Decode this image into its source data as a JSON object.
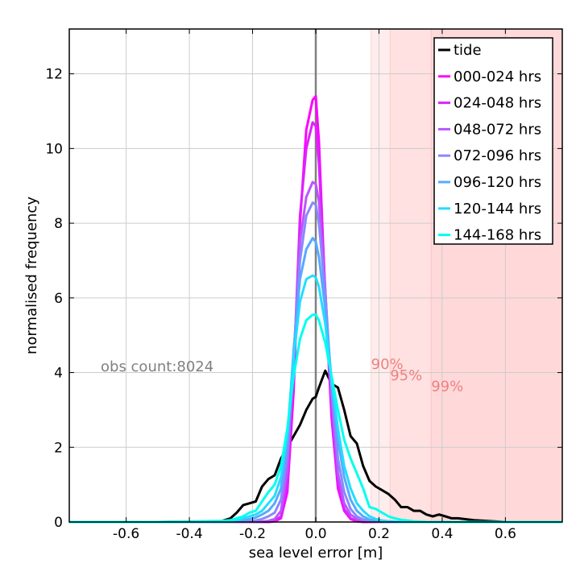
{
  "chart_data": {
    "type": "line",
    "xlabel": "sea level error [m]",
    "ylabel": "normalised frequency",
    "xlim": [
      -0.78,
      0.78
    ],
    "ylim": [
      0,
      13.2
    ],
    "xticks": [
      -0.6,
      -0.4,
      -0.2,
      0.0,
      0.2,
      0.4,
      0.6
    ],
    "xtick_labels": [
      "-0.6",
      "-0.4",
      "-0.2",
      "0.0",
      "0.2",
      "0.4",
      "0.6"
    ],
    "yticks": [
      0,
      2,
      4,
      6,
      8,
      10,
      12
    ],
    "ytick_labels": [
      "0",
      "2",
      "4",
      "6",
      "8",
      "10",
      "12"
    ],
    "grid": true,
    "legend_position": "top-right",
    "annotation_obs": "obs count:8024",
    "percentiles": [
      {
        "label": "90%",
        "value": 0.175,
        "label_y": 4.1
      },
      {
        "label": "95%",
        "value": 0.235,
        "label_y": 3.8
      },
      {
        "label": "99%",
        "value": 0.365,
        "label_y": 3.5
      }
    ],
    "extra_shade_lines": [
      0.2,
      0.4
    ],
    "shade_color": "#ffcccc",
    "percentile_text_color": "#f08080",
    "obs_text_color": "#808080",
    "zero_line_color": "#808080",
    "x": [
      -0.78,
      -0.5,
      -0.3,
      -0.27,
      -0.25,
      -0.23,
      -0.21,
      -0.19,
      -0.17,
      -0.15,
      -0.13,
      -0.11,
      -0.09,
      -0.07,
      -0.05,
      -0.03,
      -0.01,
      0.0,
      0.01,
      0.03,
      0.05,
      0.07,
      0.09,
      0.11,
      0.13,
      0.15,
      0.17,
      0.19,
      0.21,
      0.23,
      0.25,
      0.27,
      0.29,
      0.31,
      0.33,
      0.35,
      0.37,
      0.39,
      0.41,
      0.43,
      0.45,
      0.5,
      0.6,
      0.78
    ],
    "series": [
      {
        "name": "tide",
        "color": "#000000",
        "values": [
          0,
          0,
          0.02,
          0.1,
          0.25,
          0.45,
          0.5,
          0.55,
          0.95,
          1.15,
          1.25,
          1.7,
          2.0,
          2.3,
          2.6,
          3.0,
          3.3,
          3.35,
          3.6,
          4.05,
          3.7,
          3.6,
          3.0,
          2.3,
          2.1,
          1.5,
          1.1,
          0.95,
          0.85,
          0.75,
          0.6,
          0.4,
          0.4,
          0.3,
          0.3,
          0.2,
          0.15,
          0.2,
          0.15,
          0.1,
          0.1,
          0.05,
          0.0,
          0
        ]
      },
      {
        "name": "000-024 hrs",
        "color": "#ff00ff",
        "values": [
          0,
          0,
          0,
          0,
          0,
          0,
          0,
          0,
          0,
          0,
          0.02,
          0.1,
          0.8,
          3.5,
          8.0,
          10.5,
          11.3,
          11.4,
          10.2,
          6.0,
          2.8,
          0.9,
          0.3,
          0.08,
          0.02,
          0,
          0,
          0,
          0,
          0,
          0,
          0,
          0,
          0,
          0,
          0,
          0,
          0,
          0,
          0,
          0,
          0,
          0,
          0
        ]
      },
      {
        "name": "024-048 hrs",
        "color": "#dd22ff",
        "values": [
          0,
          0,
          0,
          0,
          0,
          0,
          0,
          0,
          0,
          0,
          0.03,
          0.15,
          1.0,
          4.0,
          8.2,
          10.0,
          10.7,
          10.6,
          9.6,
          6.2,
          3.0,
          1.0,
          0.35,
          0.1,
          0.03,
          0.01,
          0,
          0,
          0,
          0,
          0,
          0,
          0,
          0,
          0,
          0,
          0,
          0,
          0,
          0,
          0,
          0,
          0,
          0
        ]
      },
      {
        "name": "048-072 hrs",
        "color": "#bb55ff",
        "values": [
          0,
          0,
          0,
          0,
          0,
          0,
          0,
          0,
          0.01,
          0.03,
          0.08,
          0.3,
          1.4,
          4.3,
          7.5,
          8.7,
          9.1,
          9.05,
          8.6,
          6.2,
          3.3,
          1.3,
          0.5,
          0.2,
          0.08,
          0.03,
          0.01,
          0,
          0,
          0,
          0,
          0,
          0,
          0,
          0,
          0,
          0,
          0,
          0,
          0,
          0,
          0,
          0,
          0
        ]
      },
      {
        "name": "072-096 hrs",
        "color": "#8888ff",
        "values": [
          0,
          0,
          0,
          0,
          0,
          0.01,
          0.02,
          0.04,
          0.08,
          0.15,
          0.25,
          0.6,
          1.8,
          4.5,
          7.0,
          8.2,
          8.55,
          8.5,
          8.0,
          6.1,
          3.6,
          1.7,
          0.8,
          0.35,
          0.15,
          0.07,
          0.03,
          0.01,
          0,
          0,
          0,
          0,
          0,
          0,
          0,
          0,
          0,
          0,
          0,
          0,
          0,
          0,
          0,
          0
        ]
      },
      {
        "name": "096-120 hrs",
        "color": "#55aaff",
        "values": [
          0,
          0,
          0,
          0,
          0.02,
          0.04,
          0.08,
          0.12,
          0.2,
          0.3,
          0.5,
          0.9,
          2.2,
          4.6,
          6.5,
          7.3,
          7.6,
          7.5,
          7.1,
          5.7,
          3.8,
          2.2,
          1.2,
          0.6,
          0.3,
          0.15,
          0.07,
          0.03,
          0.01,
          0,
          0,
          0,
          0,
          0,
          0,
          0,
          0,
          0,
          0,
          0,
          0,
          0,
          0,
          0
        ]
      },
      {
        "name": "120-144 hrs",
        "color": "#22ddff",
        "values": [
          0,
          0,
          0.01,
          0.02,
          0.05,
          0.1,
          0.15,
          0.2,
          0.3,
          0.5,
          0.7,
          1.2,
          2.4,
          4.4,
          5.9,
          6.5,
          6.6,
          6.55,
          6.3,
          5.3,
          3.8,
          2.5,
          1.5,
          0.9,
          0.5,
          0.3,
          0.15,
          0.08,
          0.04,
          0.02,
          0.01,
          0,
          0,
          0,
          0,
          0,
          0,
          0,
          0,
          0,
          0,
          0,
          0,
          0
        ]
      },
      {
        "name": "144-168 hrs",
        "color": "#00ffee",
        "values": [
          0,
          0,
          0.03,
          0.05,
          0.1,
          0.15,
          0.25,
          0.3,
          0.55,
          0.8,
          1.0,
          1.5,
          2.5,
          3.9,
          4.9,
          5.4,
          5.55,
          5.55,
          5.4,
          4.8,
          3.9,
          3.0,
          2.2,
          1.7,
          1.3,
          0.9,
          0.4,
          0.35,
          0.25,
          0.15,
          0.1,
          0.06,
          0.04,
          0.02,
          0.01,
          0,
          0,
          0,
          0,
          0,
          0,
          0,
          0,
          0
        ]
      }
    ]
  }
}
